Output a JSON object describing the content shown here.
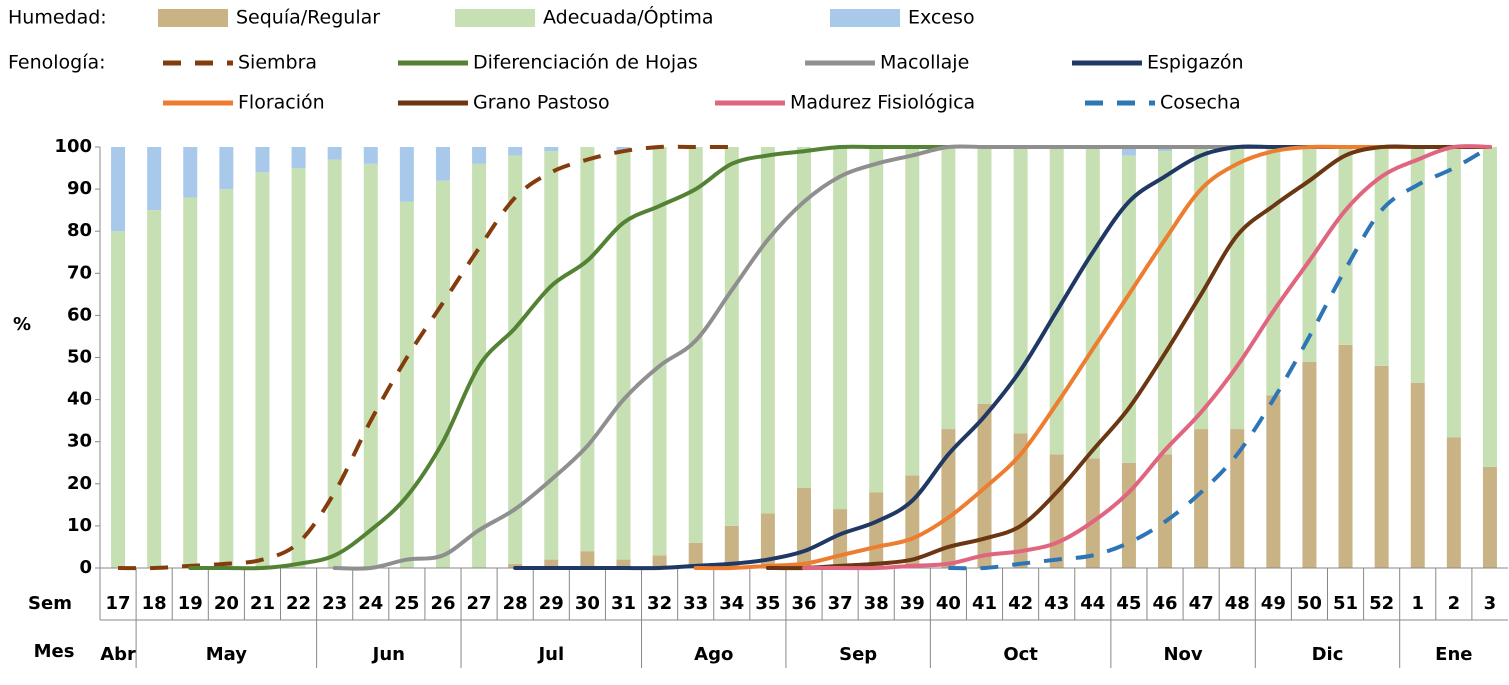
{
  "chart_data": {
    "type": "combo",
    "humidity_label": "Humedad:",
    "phenology_label": "Fenología:",
    "ylabel": "%",
    "x_row_label": "Sem",
    "month_row_label": "Mes",
    "categories": [
      "17",
      "18",
      "19",
      "20",
      "21",
      "22",
      "23",
      "24",
      "25",
      "26",
      "27",
      "28",
      "29",
      "30",
      "31",
      "32",
      "33",
      "34",
      "35",
      "36",
      "37",
      "38",
      "39",
      "40",
      "41",
      "42",
      "43",
      "44",
      "45",
      "46",
      "47",
      "48",
      "49",
      "50",
      "51",
      "52",
      "1",
      "2",
      "3"
    ],
    "months": [
      "Abr",
      "May",
      "May",
      "May",
      "May",
      "May",
      "Jun",
      "Jun",
      "Jun",
      "Jun",
      "Jul",
      "Jul",
      "Jul",
      "Jul",
      "Jul",
      "Ago",
      "Ago",
      "Ago",
      "Ago",
      "Sep",
      "Sep",
      "Sep",
      "Sep",
      "Oct",
      "Oct",
      "Oct",
      "Oct",
      "Oct",
      "Nov",
      "Nov",
      "Nov",
      "Nov",
      "Dic",
      "Dic",
      "Dic",
      "Dic",
      "Ene",
      "Ene",
      "Ene"
    ],
    "ylim": [
      0,
      100
    ],
    "yticks": [
      0,
      10,
      20,
      30,
      40,
      50,
      60,
      70,
      80,
      90,
      100
    ],
    "bar_series": [
      {
        "name": "Sequía/Regular",
        "color": "#c9b385",
        "values": [
          0,
          0,
          0,
          0,
          0,
          0,
          0,
          0,
          0,
          0,
          0,
          1,
          2,
          4,
          2,
          3,
          6,
          10,
          13,
          19,
          14,
          18,
          22,
          33,
          39,
          32,
          27,
          26,
          25,
          27,
          33,
          33,
          41,
          49,
          53,
          48,
          44,
          31,
          24
        ]
      },
      {
        "name": "Adecuada/Óptima",
        "color": "#c6e0b4",
        "values": [
          80,
          85,
          88,
          90,
          94,
          95,
          97,
          96,
          87,
          92,
          96,
          97,
          97,
          96,
          97,
          97,
          94,
          90,
          87,
          81,
          86,
          82,
          78,
          67,
          61,
          68,
          73,
          74,
          73,
          72,
          67,
          67,
          59,
          51,
          47,
          52,
          56,
          69,
          76
        ]
      },
      {
        "name": "Exceso",
        "color": "#a9c9eb",
        "values": [
          20,
          15,
          12,
          10,
          6,
          5,
          3,
          4,
          13,
          8,
          4,
          2,
          1,
          0,
          1,
          0,
          0,
          0,
          0,
          0,
          0,
          0,
          0,
          0,
          0,
          0,
          0,
          0,
          2,
          1,
          0,
          0,
          0,
          0,
          0,
          0,
          0,
          0,
          0
        ]
      }
    ],
    "line_series": [
      {
        "name": "Siembra",
        "color": "#843c0c",
        "dashed": true,
        "values": [
          0,
          0,
          0.5,
          1,
          2,
          6,
          18,
          35,
          50,
          63,
          76,
          88,
          94,
          97,
          99,
          100,
          100,
          100,
          null,
          null,
          null,
          null,
          null,
          null,
          null,
          null,
          null,
          null,
          null,
          null,
          null,
          null,
          null,
          null,
          null,
          null,
          null,
          null,
          null
        ]
      },
      {
        "name": "Diferenciación de Hojas",
        "color": "#548235",
        "dashed": false,
        "values": [
          null,
          null,
          0,
          0,
          0,
          1,
          3,
          9,
          17,
          30,
          48,
          57,
          67,
          73,
          82,
          86,
          90,
          96,
          98,
          99,
          100,
          100,
          100,
          100,
          null,
          null,
          null,
          null,
          null,
          null,
          null,
          null,
          null,
          null,
          null,
          null,
          null,
          null,
          null
        ]
      },
      {
        "name": "Macollaje",
        "color": "#8f8f8f",
        "dashed": false,
        "values": [
          null,
          null,
          null,
          null,
          null,
          null,
          0,
          0,
          2,
          3,
          9,
          14,
          21,
          29,
          40,
          48,
          54,
          66,
          78,
          87,
          93,
          96,
          98,
          100,
          100,
          100,
          100,
          100,
          100,
          100,
          100,
          100,
          100,
          100,
          100,
          100,
          100,
          100,
          100
        ]
      },
      {
        "name": "Espigazón",
        "color": "#1f3864",
        "dashed": false,
        "values": [
          null,
          null,
          null,
          null,
          null,
          null,
          null,
          null,
          null,
          null,
          null,
          0,
          0,
          0,
          0,
          0,
          0.5,
          1,
          2,
          4,
          8,
          11,
          16,
          27,
          36,
          47,
          61,
          75,
          87,
          93,
          98,
          100,
          100,
          100,
          100,
          100,
          100,
          100,
          100
        ]
      },
      {
        "name": "Floración",
        "color": "#ed7d31",
        "dashed": false,
        "values": [
          null,
          null,
          null,
          null,
          null,
          null,
          null,
          null,
          null,
          null,
          null,
          null,
          null,
          null,
          null,
          null,
          0,
          0,
          0.5,
          1,
          3,
          5,
          7,
          12,
          19,
          27,
          39,
          52,
          65,
          78,
          90,
          96,
          99,
          100,
          100,
          100,
          100,
          100,
          100
        ]
      },
      {
        "name": "Grano Pastoso",
        "color": "#6b3612",
        "dashed": false,
        "values": [
          null,
          null,
          null,
          null,
          null,
          null,
          null,
          null,
          null,
          null,
          null,
          null,
          null,
          null,
          null,
          null,
          null,
          null,
          0,
          0,
          0.5,
          1,
          2,
          5,
          7,
          10,
          18,
          28,
          38,
          51,
          65,
          79,
          86,
          92,
          98,
          100,
          100,
          100,
          100
        ]
      },
      {
        "name": "Madurez Fisiológica",
        "color": "#e06680",
        "dashed": false,
        "values": [
          null,
          null,
          null,
          null,
          null,
          null,
          null,
          null,
          null,
          null,
          null,
          null,
          null,
          null,
          null,
          null,
          null,
          null,
          null,
          0,
          0,
          0,
          0.5,
          1,
          3,
          4,
          6,
          11,
          18,
          28,
          37,
          48,
          61,
          73,
          85,
          93,
          97,
          100,
          100
        ]
      },
      {
        "name": "Cosecha",
        "color": "#2e75b6",
        "dashed": true,
        "values": [
          null,
          null,
          null,
          null,
          null,
          null,
          null,
          null,
          null,
          null,
          null,
          null,
          null,
          null,
          null,
          null,
          null,
          null,
          null,
          null,
          null,
          null,
          null,
          0,
          0,
          1,
          2,
          3,
          6,
          11,
          18,
          27,
          40,
          55,
          71,
          85,
          91,
          95,
          100
        ]
      }
    ]
  }
}
